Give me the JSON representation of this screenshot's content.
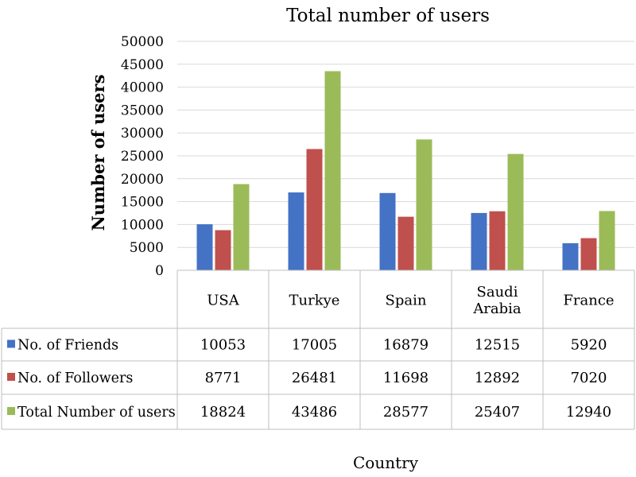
{
  "chart_data": {
    "type": "bar",
    "title": "Total number of users",
    "ylabel": "Number of users",
    "xlabel": "Country",
    "ylim": [
      0,
      50000
    ],
    "yticks": [
      0,
      5000,
      10000,
      15000,
      20000,
      25000,
      30000,
      35000,
      40000,
      45000,
      50000
    ],
    "categories": [
      [
        "USA"
      ],
      [
        "Turkye"
      ],
      [
        "Spain"
      ],
      [
        "Saudi",
        "Arabia"
      ],
      [
        "France"
      ]
    ],
    "series": [
      {
        "name": "No. of Friends",
        "color": "#4472C4",
        "values": [
          10053,
          17005,
          16879,
          12515,
          5920
        ]
      },
      {
        "name": "No. of Followers",
        "color": "#C0504D",
        "values": [
          8771,
          26481,
          11698,
          12892,
          7020
        ]
      },
      {
        "name": "Total Number of users",
        "color": "#9BBB59",
        "values": [
          18824,
          43486,
          28577,
          25407,
          12940
        ]
      }
    ],
    "data_table": true,
    "legend": "data-table-left"
  }
}
